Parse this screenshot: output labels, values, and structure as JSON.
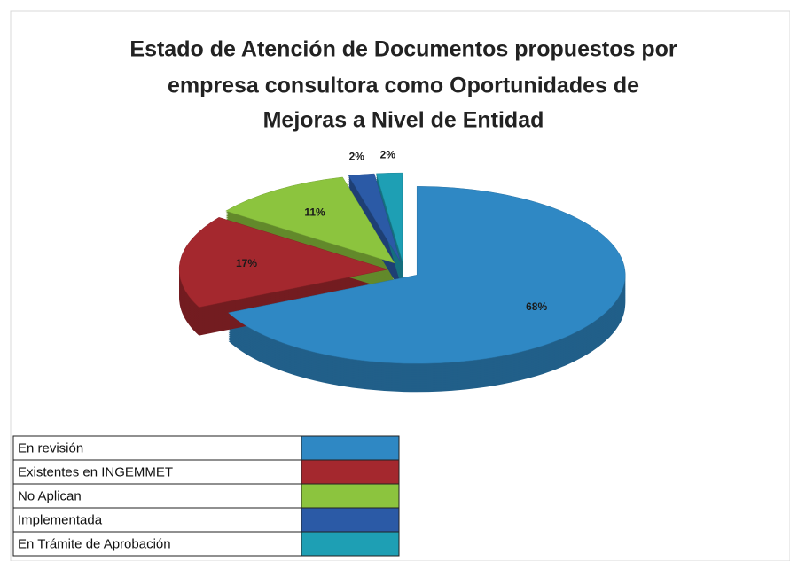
{
  "chart_data": {
    "type": "pie",
    "title": [
      "Estado de Atención de Documentos propuestos por",
      "empresa consultora como Oportunidades de",
      "Mejoras a Nivel de Entidad"
    ],
    "categories": [
      "En revisión",
      "Existentes en INGEMMET",
      "No Aplican",
      "Implementada",
      "En Trámite de Aprobación"
    ],
    "values": [
      68,
      17,
      11,
      2,
      2
    ],
    "value_labels": [
      "68%",
      "17%",
      "11%",
      "2%",
      "2%"
    ],
    "colors": [
      "#2f88c4",
      "#a4282e",
      "#8cc43e",
      "#2b5aa6",
      "#1e9fb4"
    ],
    "legend": "bottom-left"
  }
}
